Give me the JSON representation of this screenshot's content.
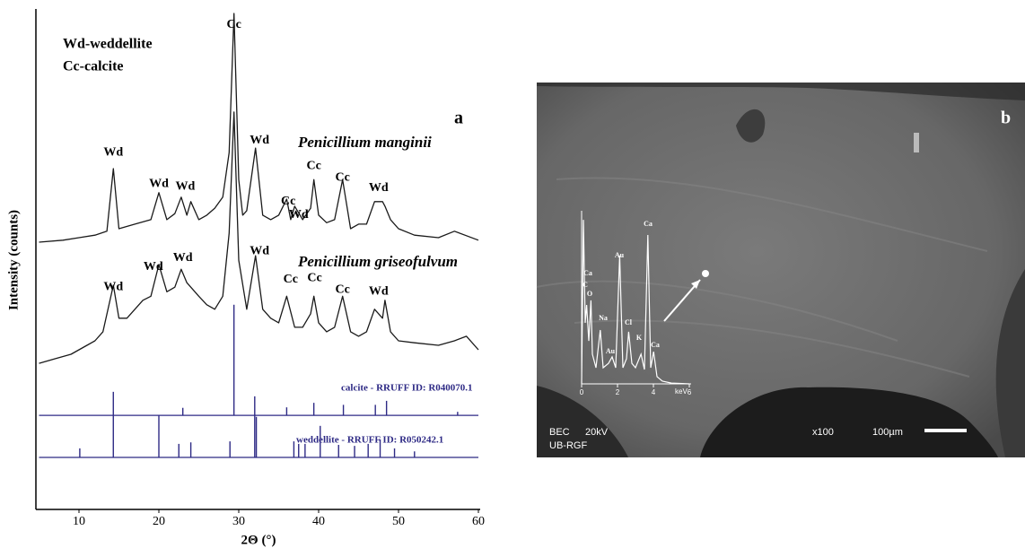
{
  "chart_data": [
    {
      "type": "line",
      "xlabel": "2Θ (°)",
      "ylabel": "Intensity (counts)",
      "legend_text": [
        "Wd-weddellite",
        "Cc-calcite"
      ],
      "panel_label": "a",
      "xlim": [
        5,
        60
      ],
      "xticks": [
        10,
        20,
        30,
        40,
        50,
        60
      ],
      "ylim": [
        0,
        100
      ],
      "series": [
        {
          "name": "Penicillium manginii",
          "color": "#1a1a1a",
          "x": [
            5,
            8,
            10,
            12,
            13.5,
            14.3,
            15,
            17,
            19,
            20,
            21,
            22,
            22.8,
            23.5,
            24,
            25,
            26,
            27,
            28,
            28.8,
            29.4,
            30,
            30.5,
            31,
            32.1,
            33,
            34,
            35,
            36,
            36.5,
            37,
            38,
            39,
            39.4,
            40,
            41,
            42,
            43,
            44,
            45,
            46,
            47,
            48,
            48.3,
            49,
            50,
            52,
            55,
            57,
            60
          ],
          "values": [
            53.4,
            53.8,
            54.3,
            54.8,
            55.6,
            68.1,
            56.1,
            57.0,
            57.9,
            63.3,
            57.9,
            59.1,
            62.4,
            58.8,
            61.5,
            57.9,
            58.8,
            60.2,
            62.4,
            71.3,
            99.1,
            65.9,
            58.8,
            59.7,
            72.2,
            58.8,
            57.9,
            58.8,
            62.0,
            57.9,
            60.6,
            57.9,
            60.2,
            65.9,
            58.8,
            57.3,
            57.9,
            65.9,
            56.1,
            57.0,
            57.0,
            61.5,
            61.5,
            60.6,
            57.9,
            56.1,
            54.8,
            54.3,
            55.6,
            53.8
          ]
        },
        {
          "name": "Penicillium griseofulvum",
          "color": "#1a1a1a",
          "x": [
            5,
            7,
            9,
            11,
            12,
            13,
            14.3,
            15,
            16,
            17,
            18,
            19,
            20,
            21,
            22,
            22.8,
            23.5,
            24,
            25,
            26,
            27,
            28,
            28.8,
            29.4,
            30,
            31,
            32.1,
            33,
            34,
            35,
            36,
            37,
            38,
            39,
            39.4,
            40,
            41,
            42,
            43,
            44,
            45,
            46,
            47,
            48,
            48.3,
            49,
            50,
            52,
            55,
            57,
            58.5,
            60
          ],
          "values": [
            29.2,
            30.1,
            31.0,
            32.8,
            33.7,
            35.5,
            44.8,
            38.2,
            38.2,
            40.0,
            41.8,
            42.6,
            48.9,
            43.5,
            44.4,
            48.0,
            45.3,
            44.4,
            42.6,
            40.9,
            40.0,
            42.6,
            55.2,
            79.4,
            49.8,
            40.0,
            50.7,
            40.0,
            38.2,
            37.3,
            42.6,
            36.4,
            36.4,
            39.1,
            42.6,
            37.3,
            35.5,
            36.4,
            42.6,
            35.5,
            34.6,
            35.5,
            40.0,
            38.2,
            41.8,
            35.5,
            33.7,
            33.3,
            32.8,
            33.7,
            34.6,
            31.9
          ]
        },
        {
          "name": "calcite - RRUFF ID: R040070.1",
          "color": "#2e2a85",
          "style": "stick",
          "baseline": 18.8,
          "x": [
            23.0,
            29.4,
            36.0,
            39.4,
            43.1,
            47.1,
            48.5,
            57.4
          ],
          "values": [
            20.3,
            40.9,
            20.4,
            21.3,
            20.9,
            20.9,
            21.7,
            19.5
          ]
        },
        {
          "name": "weddellite - RRUFF ID: R050242.1",
          "color": "#2e2a85",
          "style": "stick",
          "baseline": 10.4,
          "x": [
            10.1,
            14.3,
            20.0,
            22.5,
            24.0,
            28.9,
            32.0,
            32.2,
            36.9,
            37.5,
            38.3,
            40.2,
            42.5,
            44.5,
            46.2,
            47.7,
            49.5,
            52.0
          ],
          "values": [
            12.2,
            23.5,
            18.8,
            13.1,
            13.4,
            13.6,
            22.6,
            18.5,
            13.6,
            13.1,
            13.1,
            16.7,
            12.9,
            12.7,
            13.1,
            14.0,
            12.2,
            11.6
          ]
        }
      ],
      "annotations": [
        {
          "text": "Wd",
          "x": 14.3,
          "y": 71.3
        },
        {
          "text": "Wd",
          "x": 20,
          "y": 65.0
        },
        {
          "text": "Wd",
          "x": 23.3,
          "y": 64.5
        },
        {
          "text": "Cc",
          "x": 29.4,
          "y": 96.8
        },
        {
          "text": "Wd",
          "x": 32.6,
          "y": 73.7
        },
        {
          "text": "Cc",
          "x": 36.2,
          "y": 61.5
        },
        {
          "text": "Wd",
          "x": 37.5,
          "y": 58.8
        },
        {
          "text": "Cc",
          "x": 39.4,
          "y": 68.6
        },
        {
          "text": "Cc",
          "x": 43,
          "y": 66.3
        },
        {
          "text": "Wd",
          "x": 47.5,
          "y": 64.2
        },
        {
          "text": "Wd",
          "x": 14.3,
          "y": 44.4
        },
        {
          "text": "Wd",
          "x": 19.3,
          "y": 48.4
        },
        {
          "text": "Wd",
          "x": 23,
          "y": 50.2
        },
        {
          "text": "Wd",
          "x": 32.6,
          "y": 51.6
        },
        {
          "text": "Cc",
          "x": 36.5,
          "y": 45.9
        },
        {
          "text": "Cc",
          "x": 39.5,
          "y": 46.2
        },
        {
          "text": "Cc",
          "x": 43,
          "y": 43.9
        },
        {
          "text": "Wd",
          "x": 47.5,
          "y": 43.5
        }
      ]
    },
    {
      "type": "line",
      "xlabel": "keV",
      "color": "#ffffff",
      "xlim": [
        0,
        6
      ],
      "xticks": [
        0,
        2,
        4,
        6
      ],
      "ylim": [
        0,
        100
      ],
      "x": [
        0,
        0.1,
        0.2,
        0.28,
        0.4,
        0.52,
        0.6,
        0.8,
        1.04,
        1.2,
        1.5,
        1.7,
        1.9,
        2.12,
        2.3,
        2.5,
        2.62,
        2.8,
        3.0,
        3.31,
        3.5,
        3.69,
        3.85,
        4.01,
        4.2,
        4.5,
        5,
        6
      ],
      "values": [
        0,
        97.3,
        36.2,
        46.8,
        25.5,
        49.5,
        17.6,
        9.6,
        31.9,
        9.6,
        12.2,
        16.0,
        9.6,
        76.1,
        9.6,
        14.9,
        30.9,
        12.2,
        9.6,
        17.6,
        8.5,
        88.3,
        9.6,
        19.1,
        4.3,
        1.6,
        0.5,
        0
      ],
      "annotations": [
        {
          "text": "Ca",
          "x": 0.35,
          "y": 65.4
        },
        {
          "text": "C",
          "x": 0.2,
          "y": 58.5
        },
        {
          "text": "O",
          "x": 0.45,
          "y": 53.2
        },
        {
          "text": "Na",
          "x": 1.2,
          "y": 38.8
        },
        {
          "text": "Au",
          "x": 1.6,
          "y": 19.1
        },
        {
          "text": "Au",
          "x": 2.1,
          "y": 76.1
        },
        {
          "text": "Cl",
          "x": 2.6,
          "y": 36.2
        },
        {
          "text": "K",
          "x": 3.2,
          "y": 27.1
        },
        {
          "text": "Ca",
          "x": 3.7,
          "y": 94.7
        },
        {
          "text": "Ca",
          "x": 4.1,
          "y": 22.9
        }
      ]
    }
  ],
  "image": {
    "panel_label": "b",
    "detector": "BEC",
    "voltage": "20kV",
    "lab": "UB-RGF",
    "magnification": "x100",
    "scale_bar": "100µm"
  }
}
